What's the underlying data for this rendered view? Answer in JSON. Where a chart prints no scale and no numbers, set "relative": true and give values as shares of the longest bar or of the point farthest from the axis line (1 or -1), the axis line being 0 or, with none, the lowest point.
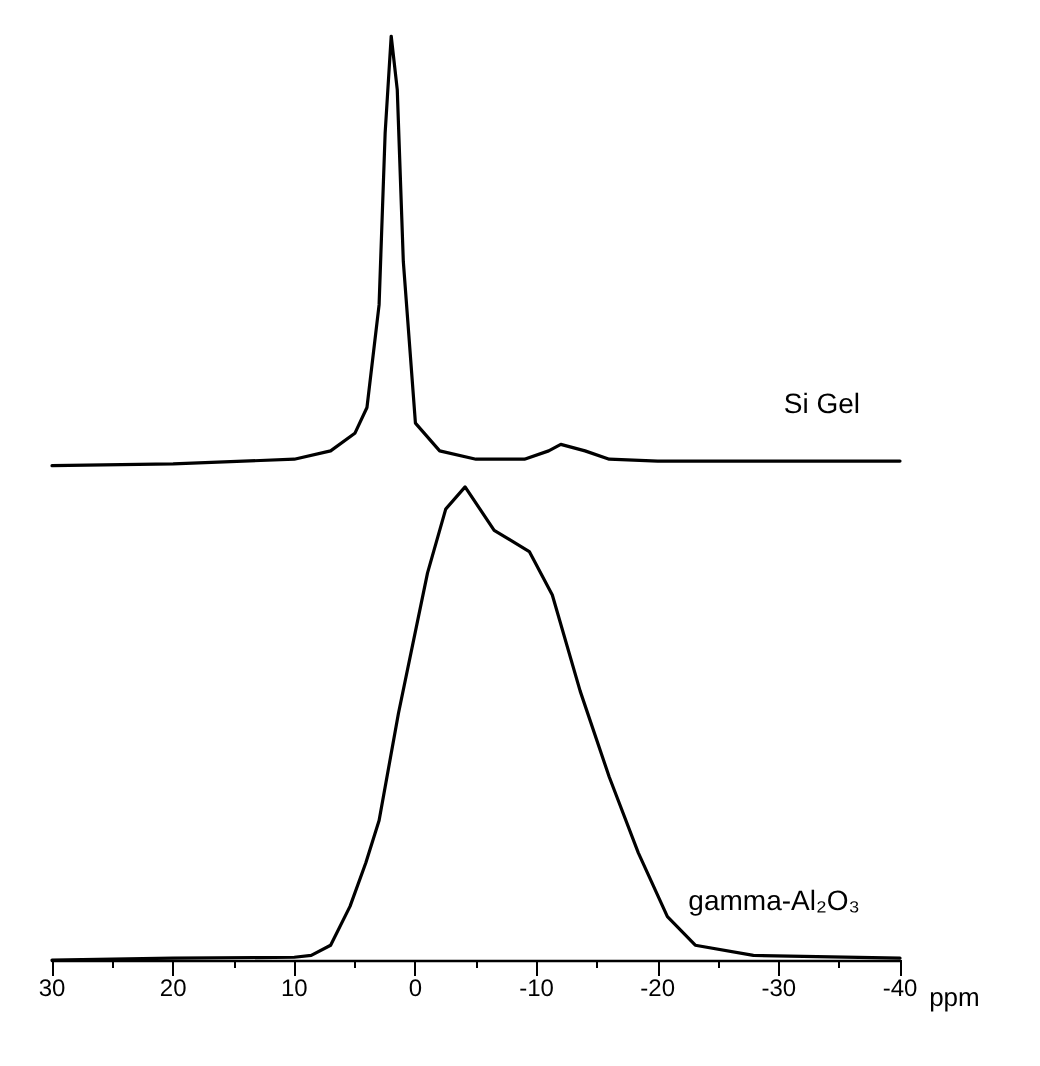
{
  "chart_data": {
    "type": "line",
    "relative": true,
    "xlabel": "ppm",
    "xlim": [
      30,
      -40
    ],
    "xticks": [
      30,
      20,
      10,
      0,
      -10,
      -20,
      -30,
      -40
    ],
    "grid": false,
    "legend": false,
    "marker": "none",
    "line_style": "solid",
    "series": [
      {
        "name": "Si Gel",
        "color": "#000000",
        "x": [
          30,
          20,
          10,
          7,
          5,
          4,
          3,
          2.5,
          2,
          1.5,
          1,
          0,
          -2,
          -5,
          -9,
          -11,
          -12,
          -14,
          -16,
          -20,
          -30,
          -40
        ],
        "values": [
          0.535,
          0.537,
          0.542,
          0.551,
          0.57,
          0.598,
          0.709,
          0.895,
          1,
          0.942,
          0.756,
          0.581,
          0.551,
          0.542,
          0.542,
          0.551,
          0.558,
          0.551,
          0.542,
          0.54,
          0.54,
          0.54
        ]
      },
      {
        "name": "gamma-Al₂O₃",
        "color": "#000000",
        "x": [
          30,
          20,
          10,
          8.6,
          7,
          5.4,
          4.1,
          3,
          1.4,
          -1,
          -2.5,
          -4.1,
          -6.5,
          -9.4,
          -11.3,
          -13.6,
          -16,
          -18.4,
          -20.8,
          -23.1,
          -27.9,
          -40
        ],
        "values": [
          0,
          0.002,
          0.003,
          0.005,
          0.016,
          0.058,
          0.105,
          0.151,
          0.267,
          0.419,
          0.488,
          0.512,
          0.465,
          0.442,
          0.395,
          0.291,
          0.198,
          0.116,
          0.047,
          0.016,
          0.005,
          0.002
        ]
      }
    ]
  }
}
